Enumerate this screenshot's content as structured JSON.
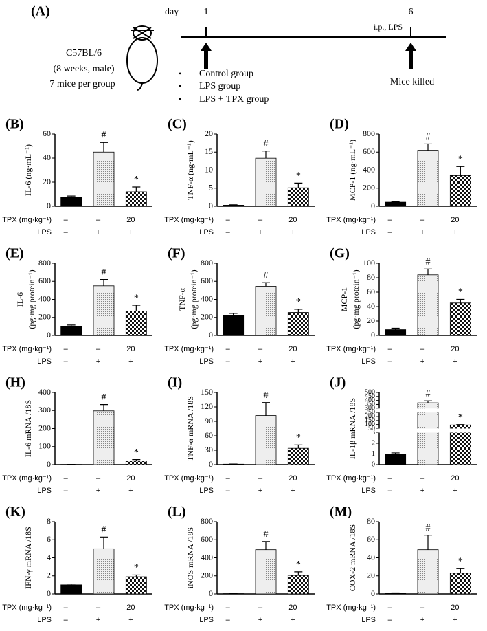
{
  "diagram": {
    "label": "(A)",
    "strain": "C57BL/6",
    "age": "(8 weeks, male)",
    "group_size": "7 mice per group",
    "day_label": "day",
    "day_start": "1",
    "day_end": "6",
    "treatment": "i.p., LPS",
    "groups": [
      "Control group",
      "LPS group",
      "LPS + TPX group"
    ],
    "end_note": "Mice killed"
  },
  "chart_data": [
    {
      "type": "bar",
      "panel": "(B)",
      "ylabel": [
        "IL-6 (ng·mL⁻¹)"
      ],
      "ylim": [
        0,
        60
      ],
      "yticks": [
        0,
        20,
        40,
        60
      ],
      "values": [
        7.5,
        45,
        12
      ],
      "errors": [
        1,
        8,
        4
      ],
      "annotations": [
        null,
        "#",
        "*"
      ],
      "xtable": [
        {
          "label": "TPX (mg·kg⁻¹)",
          "cells": [
            "–",
            "–",
            "20"
          ]
        },
        {
          "label": "LPS",
          "cells": [
            "–",
            "+",
            "+"
          ]
        }
      ]
    },
    {
      "type": "bar",
      "panel": "(C)",
      "ylabel": [
        "TNF-α (ng·mL⁻¹)"
      ],
      "ylim": [
        0,
        20
      ],
      "yticks": [
        0,
        5,
        10,
        15,
        20
      ],
      "values": [
        0.3,
        13.3,
        5.1
      ],
      "errors": [
        0.1,
        2,
        1.3
      ],
      "annotations": [
        null,
        "#",
        "*"
      ],
      "xtable": [
        {
          "label": "TPX (mg·kg⁻¹)",
          "cells": [
            "–",
            "–",
            "20"
          ]
        },
        {
          "label": "LPS",
          "cells": [
            "–",
            "+",
            "+"
          ]
        }
      ]
    },
    {
      "type": "bar",
      "panel": "(D)",
      "ylabel": [
        "MCP-1 (ng·mL⁻¹)"
      ],
      "ylim": [
        0,
        800
      ],
      "yticks": [
        0,
        200,
        400,
        600,
        800
      ],
      "values": [
        45,
        620,
        340
      ],
      "errors": [
        5,
        70,
        100
      ],
      "annotations": [
        null,
        "#",
        "*"
      ],
      "xtable": [
        {
          "label": "TPX (mg·kg⁻¹)",
          "cells": [
            "–",
            "–",
            "20"
          ]
        },
        {
          "label": "LPS",
          "cells": [
            "–",
            "+",
            "+"
          ]
        }
      ]
    },
    {
      "type": "bar",
      "panel": "(E)",
      "ylabel": [
        "IL-6",
        "(pg·mg protein⁻¹)"
      ],
      "ylim": [
        0,
        800
      ],
      "yticks": [
        0,
        200,
        400,
        600,
        800
      ],
      "values": [
        100,
        550,
        270
      ],
      "errors": [
        15,
        70,
        65
      ],
      "annotations": [
        null,
        "#",
        "*"
      ],
      "xtable": [
        {
          "label": "TPX (mg·kg⁻¹)",
          "cells": [
            "–",
            "–",
            "20"
          ]
        },
        {
          "label": "LPS",
          "cells": [
            "–",
            "+",
            "+"
          ]
        }
      ]
    },
    {
      "type": "bar",
      "panel": "(F)",
      "ylabel": [
        "TNF-α",
        "(pg·mg protein⁻¹)"
      ],
      "ylim": [
        0,
        800
      ],
      "yticks": [
        0,
        200,
        400,
        600,
        800
      ],
      "values": [
        220,
        545,
        255
      ],
      "errors": [
        25,
        40,
        35
      ],
      "annotations": [
        null,
        "#",
        "*"
      ],
      "xtable": [
        {
          "label": "TPX (mg·kg⁻¹)",
          "cells": [
            "–",
            "–",
            "20"
          ]
        },
        {
          "label": "LPS",
          "cells": [
            "–",
            "+",
            "+"
          ]
        }
      ]
    },
    {
      "type": "bar",
      "panel": "(G)",
      "ylabel": [
        "MCP-1",
        "(pg·mg protein⁻¹)"
      ],
      "ylim": [
        0,
        100
      ],
      "yticks": [
        0,
        20,
        40,
        60,
        80,
        100
      ],
      "values": [
        8,
        84,
        45
      ],
      "errors": [
        2,
        8,
        5
      ],
      "annotations": [
        null,
        "#",
        "*"
      ],
      "xtable": [
        {
          "label": "TPX (mg·kg⁻¹)",
          "cells": [
            "–",
            "–",
            "20"
          ]
        },
        {
          "label": "LPS",
          "cells": [
            "–",
            "+",
            "+"
          ]
        }
      ]
    },
    {
      "type": "bar",
      "panel": "(H)",
      "ylabel": [
        "IL-6 mRNA /18S"
      ],
      "ylim": [
        0,
        400
      ],
      "yticks": [
        0,
        100,
        200,
        300,
        400
      ],
      "values": [
        1,
        298,
        20
      ],
      "errors": [
        0.5,
        35,
        8
      ],
      "annotations": [
        null,
        "#",
        "*"
      ],
      "xtable": [
        {
          "label": "TPX (mg·kg⁻¹)",
          "cells": [
            "–",
            "–",
            "20"
          ]
        },
        {
          "label": "LPS",
          "cells": [
            "–",
            "+",
            "+"
          ]
        }
      ]
    },
    {
      "type": "bar",
      "panel": "(I)",
      "ylabel": [
        "TNF-α mRNA /18S"
      ],
      "ylim": [
        0,
        150
      ],
      "yticks": [
        0,
        30,
        60,
        90,
        120,
        150
      ],
      "values": [
        1,
        102,
        34
      ],
      "errors": [
        0.3,
        27,
        7
      ],
      "annotations": [
        null,
        "#",
        "*"
      ],
      "xtable": [
        {
          "label": "TPX (mg·kg⁻¹)",
          "cells": [
            "–",
            "–",
            "20"
          ]
        },
        {
          "label": "LPS",
          "cells": [
            "–",
            "+",
            "+"
          ]
        }
      ]
    },
    {
      "type": "bar",
      "panel": "(J)",
      "ylabel": [
        "IL-1β mRNA /18S"
      ],
      "ylim": [
        0,
        500
      ],
      "ybreaks": [
        [
          3,
          50
        ],
        [
          250,
          300
        ]
      ],
      "yticks": [
        0,
        1,
        2,
        3,
        50,
        100,
        150,
        200,
        250,
        300,
        350,
        400,
        450,
        500
      ],
      "values": [
        1,
        370,
        95
      ],
      "errors": [
        0.1,
        25,
        5
      ],
      "annotations": [
        null,
        "#",
        "*"
      ],
      "xtable": [
        {
          "label": "TPX (mg·kg⁻¹)",
          "cells": [
            "–",
            "–",
            "20"
          ]
        },
        {
          "label": "LPS",
          "cells": [
            "–",
            "+",
            "+"
          ]
        }
      ]
    },
    {
      "type": "bar",
      "panel": "(K)",
      "ylabel": [
        "IFN-γ mRNA /18S"
      ],
      "ylim": [
        0,
        8
      ],
      "yticks": [
        0,
        2,
        4,
        6,
        8
      ],
      "values": [
        1,
        5,
        1.9
      ],
      "errors": [
        0.1,
        1.3,
        0.2
      ],
      "annotations": [
        null,
        "#",
        "*"
      ],
      "xtable": [
        {
          "label": "TPX (mg·kg⁻¹)",
          "cells": [
            "–",
            "–",
            "20"
          ]
        },
        {
          "label": "LPS",
          "cells": [
            "–",
            "+",
            "+"
          ]
        }
      ]
    },
    {
      "type": "bar",
      "panel": "(L)",
      "ylabel": [
        "iNOS mRNA /18S"
      ],
      "ylim": [
        0,
        800
      ],
      "yticks": [
        0,
        200,
        400,
        600,
        800
      ],
      "values": [
        3,
        490,
        205
      ],
      "errors": [
        1,
        90,
        40
      ],
      "annotations": [
        null,
        "#",
        "*"
      ],
      "xtable": [
        {
          "label": "TPX (mg·kg⁻¹)",
          "cells": [
            "–",
            "–",
            "20"
          ]
        },
        {
          "label": "LPS",
          "cells": [
            "–",
            "+",
            "+"
          ]
        }
      ]
    },
    {
      "type": "bar",
      "panel": "(M)",
      "ylabel": [
        "COX-2 mRNA /18S"
      ],
      "ylim": [
        0,
        80
      ],
      "yticks": [
        0,
        20,
        40,
        60,
        80
      ],
      "values": [
        1,
        49,
        23
      ],
      "errors": [
        0.2,
        16,
        5
      ],
      "annotations": [
        null,
        "#",
        "*"
      ],
      "xtable": [
        {
          "label": "TPX (mg·kg⁻¹)",
          "cells": [
            "–",
            "–",
            "20"
          ]
        },
        {
          "label": "LPS",
          "cells": [
            "–",
            "+",
            "+"
          ]
        }
      ]
    }
  ]
}
